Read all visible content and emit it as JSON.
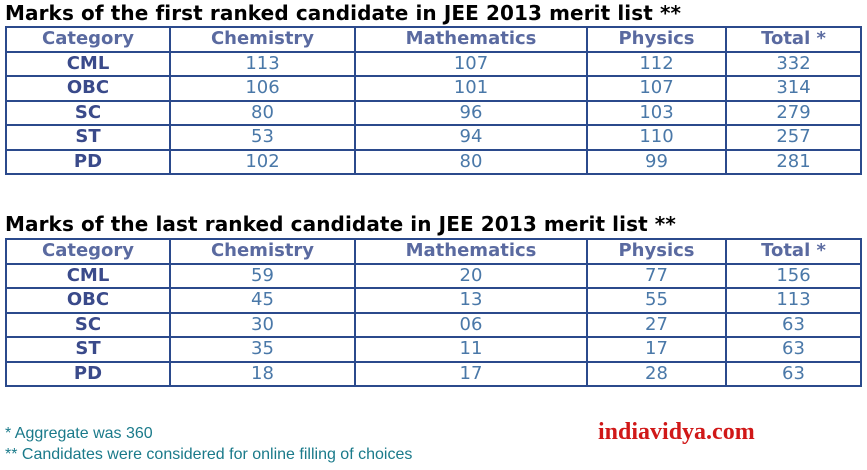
{
  "tables": [
    {
      "title": "Marks of the first ranked candidate in JEE 2013 merit list **",
      "headers": [
        "Category",
        "Chemistry",
        "Mathematics",
        "Physics",
        "Total *"
      ],
      "rows": [
        [
          "CML",
          "113",
          "107",
          "112",
          "332"
        ],
        [
          "OBC",
          "106",
          "101",
          "107",
          "314"
        ],
        [
          "SC",
          "80",
          "96",
          "103",
          "279"
        ],
        [
          "ST",
          "53",
          "94",
          "110",
          "257"
        ],
        [
          "PD",
          "102",
          "80",
          "99",
          "281"
        ]
      ]
    },
    {
      "title": "Marks of the last ranked candidate in JEE 2013 merit list **",
      "headers": [
        "Category",
        "Chemistry",
        "Mathematics",
        "Physics",
        "Total *"
      ],
      "rows": [
        [
          "CML",
          "59",
          "20",
          "77",
          "156"
        ],
        [
          "OBC",
          "45",
          "13",
          "55",
          "113"
        ],
        [
          "SC",
          "30",
          "06",
          "27",
          "63"
        ],
        [
          "ST",
          "35",
          "11",
          "17",
          "63"
        ],
        [
          "PD",
          "18",
          "17",
          "28",
          "63"
        ]
      ]
    }
  ],
  "footnotes": [
    "* Aggregate was 360",
    "** Candidates were considered for online filling of choices"
  ],
  "brand": "indiavidya.com"
}
